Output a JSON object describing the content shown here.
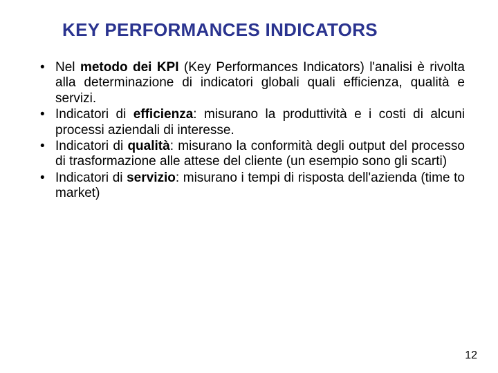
{
  "title": "KEY PERFORMANCES INDICATORS",
  "title_color": "#2a338f",
  "title_fontsize": 26,
  "body_fontsize": 19,
  "body_color": "#000000",
  "background_color": "#ffffff",
  "page_number": "12",
  "bullets": [
    {
      "pre": "Nel ",
      "bold1": "metodo dei KPI",
      "rest": " (Key Performances Indicators) l'analisi è rivolta alla determinazione di indicatori globali quali efficienza, qualità e servizi."
    },
    {
      "pre": "Indicatori di ",
      "bold1": "efficienza",
      "rest": ": misurano la produttività e i costi di alcuni processi aziendali di interesse."
    },
    {
      "pre": "Indicatori di ",
      "bold1": "qualità",
      "rest": ": misurano la conformità degli output del processo di trasformazione alle attese del cliente (un esempio sono gli scarti)"
    },
    {
      "pre": "Indicatori di ",
      "bold1": "servizio",
      "rest": ": misurano i tempi di risposta dell'azienda (time to market)"
    }
  ]
}
